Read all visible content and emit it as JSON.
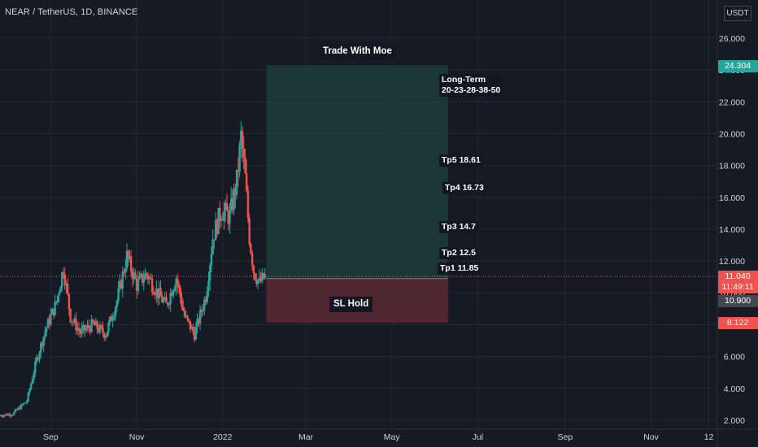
{
  "header": {
    "title": "NEAR / TetherUS, 1D, BINANCE"
  },
  "unit_button": "USDT",
  "colors": {
    "background": "#161a25",
    "up": "#26a69a",
    "down": "#ef5350",
    "profit_zone": "#1c3d37",
    "loss_zone": "#5a2a33",
    "grid": "#242833",
    "text": "#d1d4dc"
  },
  "price_labels": {
    "target": {
      "text": "24.304",
      "color": "#26a69a"
    },
    "current_price": {
      "text": "11.040",
      "color": "#ef5350"
    },
    "countdown": {
      "text": "11:49:11",
      "color": "#ef5350"
    },
    "entry": {
      "text": "10.900",
      "color": "#434651"
    },
    "stop": {
      "text": "8.122",
      "color": "#ef5350"
    }
  },
  "annotations": {
    "title_tag": "Trade With Moe",
    "long_term_line1": "Long-Term",
    "long_term_line2": "20-23-28-38-50",
    "tp5": "Tp5 18.61",
    "tp4": "Tp4 16.73",
    "tp3": "Tp3 14.7",
    "tp2": "Tp2 12.5",
    "tp1": "Tp1 11.85",
    "sl": "SL Hold"
  },
  "chart_data": {
    "type": "candlestick",
    "title": "NEAR / TetherUS, 1D, BINANCE",
    "y_axis": {
      "scale": "linear",
      "ticks": [
        "2.000",
        "4.000",
        "6.000",
        "8.000",
        "10.000",
        "12.000",
        "14.000",
        "16.000",
        "18.000",
        "20.000",
        "22.000",
        "24.000",
        "26.000"
      ],
      "range": [
        1.6,
        28
      ]
    },
    "x_axis": {
      "ticks": [
        "Sep",
        "Nov",
        "2022",
        "Mar",
        "May",
        "Jul",
        "Sep",
        "Nov",
        "12"
      ],
      "range": [
        "2021-07-27",
        "2022-12-18"
      ]
    },
    "price_path": [
      [
        "2021-07-27",
        2.3
      ],
      [
        "2021-08-05",
        2.4
      ],
      [
        "2021-08-15",
        3.2
      ],
      [
        "2021-08-22",
        5.8
      ],
      [
        "2021-08-28",
        7.6
      ],
      [
        "2021-09-05",
        9.4
      ],
      [
        "2021-09-10",
        11.6
      ],
      [
        "2021-09-15",
        8.5
      ],
      [
        "2021-09-22",
        7.5
      ],
      [
        "2021-10-01",
        8.0
      ],
      [
        "2021-10-10",
        7.4
      ],
      [
        "2021-10-18",
        9.5
      ],
      [
        "2021-10-25",
        12.3
      ],
      [
        "2021-11-01",
        10.5
      ],
      [
        "2021-11-08",
        11.2
      ],
      [
        "2021-11-15",
        10.1
      ],
      [
        "2021-11-22",
        9.2
      ],
      [
        "2021-11-29",
        11.0
      ],
      [
        "2021-12-05",
        8.5
      ],
      [
        "2021-12-12",
        7.4
      ],
      [
        "2021-12-20",
        9.8
      ],
      [
        "2021-12-25",
        13.5
      ],
      [
        "2021-12-31",
        15.2
      ],
      [
        "2022-01-06",
        14.8
      ],
      [
        "2022-01-11",
        17.0
      ],
      [
        "2022-01-14",
        19.8
      ],
      [
        "2022-01-17",
        17.2
      ],
      [
        "2022-01-20",
        13.5
      ],
      [
        "2022-01-23",
        11.4
      ],
      [
        "2022-01-27",
        10.6
      ],
      [
        "2022-01-31",
        11.04
      ]
    ],
    "current_price": 11.04,
    "position": {
      "type": "long",
      "entry": 10.9,
      "target": 24.304,
      "stop": 8.122,
      "start": "2022-02-01",
      "end": "2022-06-10",
      "take_profits": [
        11.85,
        12.5,
        14.7,
        16.73,
        18.61
      ]
    }
  }
}
